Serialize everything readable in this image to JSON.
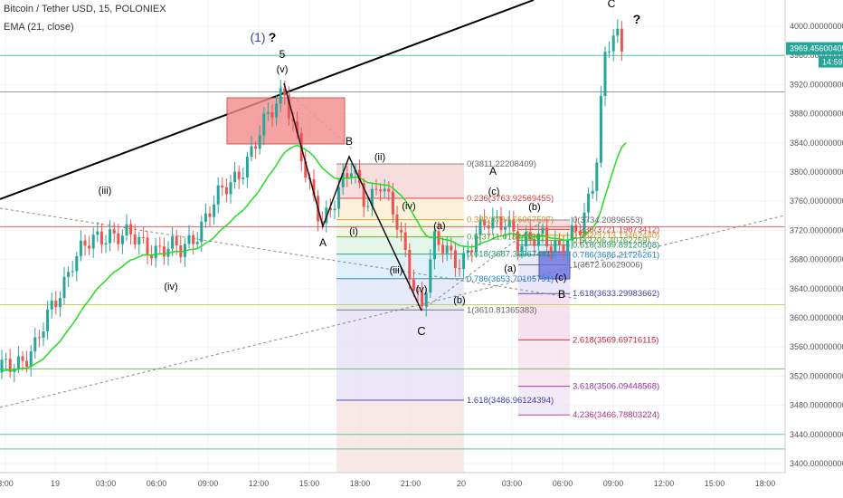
{
  "header": {
    "symbol_line": "Bitcoin / Tether USD, 15, POLONIEX",
    "indicator_line": "EMA (21, close)"
  },
  "colors": {
    "up_candle": "#26a69a",
    "down_candle": "#ef5350",
    "ema": "#22dd22",
    "trendline": "#000000",
    "price_box_bg": "#26a69a",
    "time_box_bg": "#26a69a"
  },
  "chart_data": {
    "type": "candlestick",
    "price_axis": {
      "ylim": [
        3385,
        4040
      ],
      "ticks": [
        "4000.00000000",
        "3960.00000000",
        "3920.00000000",
        "3880.00000000",
        "3840.00000000",
        "3800.00000000",
        "3760.00000000",
        "3720.00000000",
        "3680.00000000",
        "3640.00000000",
        "3600.00000000",
        "3560.00000000",
        "3520.00000000",
        "3480.00000000",
        "3440.00000000",
        "3400.00000000"
      ],
      "current_price": "3969.45600405",
      "countdown": "14:59"
    },
    "time_axis": {
      "ticks": [
        "3:00",
        "19",
        "03:00",
        "06:00",
        "09:00",
        "12:00",
        "15:00",
        "18:00",
        "21:00",
        "20",
        "03:00",
        "06:00",
        "09:00",
        "12:00",
        "15:00",
        "18:00"
      ]
    },
    "ema": {
      "name": "EMA (21, close)",
      "period": 21
    },
    "fib_retracement_1": {
      "levels": [
        {
          "label": "0(3811.22208409)",
          "value": 3811.22
        },
        {
          "label": "0.236(3763.92569455)",
          "value": 3763.93
        },
        {
          "label": "0.382(3734.66067597)",
          "value": 3734.66
        },
        {
          "label": "0.5(3711.01844720)",
          "value": 3711.02
        },
        {
          "label": "0.618(3687.36967441)",
          "value": 3687.37
        },
        {
          "label": "0.786(3653.70105791)",
          "value": 3653.7
        },
        {
          "label": "1(3610.81365383)",
          "value": 3610.81
        },
        {
          "label": "1.618(3486.96124394)",
          "value": 3486.96
        }
      ]
    },
    "fib_extension_2": {
      "levels": [
        {
          "label": "0(3734.20896553)",
          "value": 3734.21
        },
        {
          "label": "0.236(3721.19873412)",
          "value": 3721.2
        },
        {
          "label": "0.382(3713.13462440)",
          "value": 3713.13
        },
        {
          "label": "0.5(3706.40762759)",
          "value": 3706.41
        },
        {
          "label": "0.618(3699.89120508)",
          "value": 3699.89
        },
        {
          "label": "0.786(3686.21726261)",
          "value": 3686.22
        },
        {
          "label": "1(3672.60629006)",
          "value": 3672.61
        },
        {
          "label": "1.618(3633.29983662)",
          "value": 3633.3
        },
        {
          "label": "2.618(3569.69716115)",
          "value": 3569.7
        },
        {
          "label": "3.618(3506.09448568)",
          "value": 3506.09
        },
        {
          "label": "4.236(3466.78803224)",
          "value": 3466.79
        }
      ]
    },
    "annotations": [
      "(1)",
      "?",
      "5",
      "(v)",
      "(iii)",
      "(iv)",
      "A",
      "B",
      "(i)",
      "(ii)",
      "(iii)",
      "(iv)",
      "(v)",
      "C",
      "(a)",
      "(b)",
      "A",
      "(c)",
      "(b)",
      "(a)",
      "(c)",
      "B",
      "C",
      "?"
    ],
    "wave_points": [
      {
        "label": "5 (v)",
        "time_index": 0,
        "price": 3920
      },
      {
        "label": "A",
        "price": 3722
      },
      {
        "label": "B",
        "price": 3819
      },
      {
        "label": "C",
        "price": 3611
      }
    ]
  }
}
